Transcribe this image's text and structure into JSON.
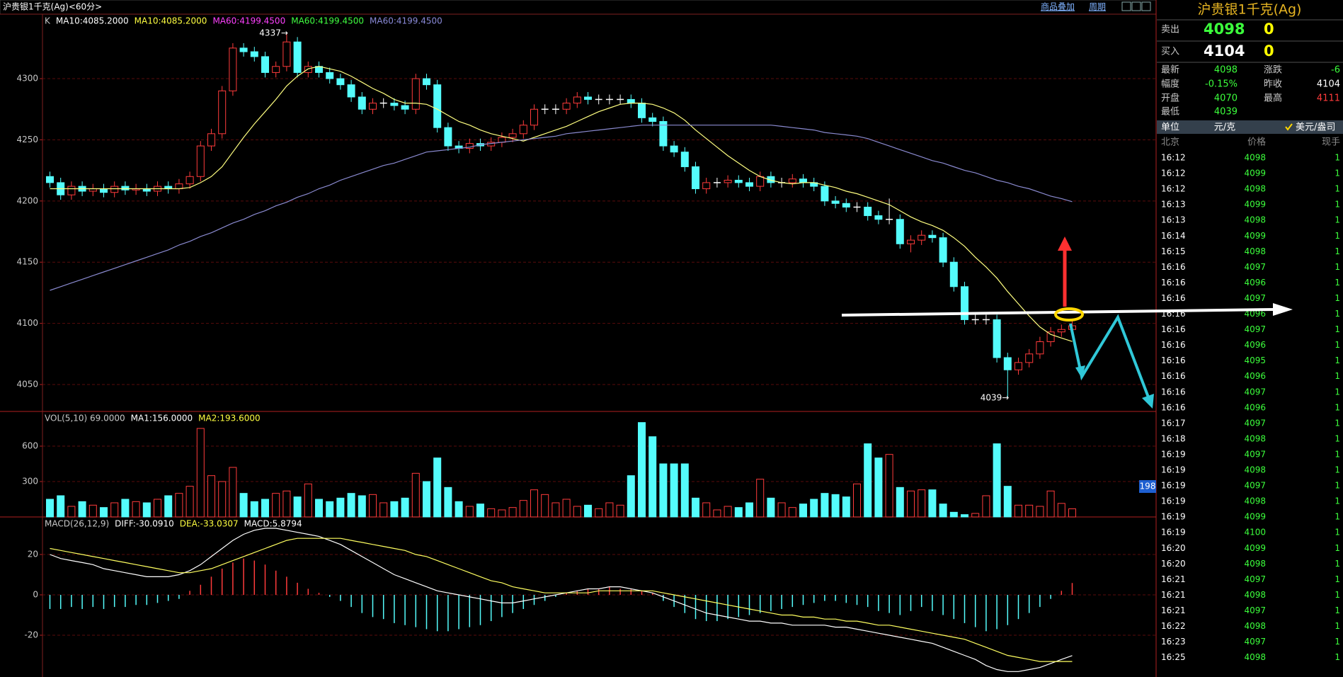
{
  "header": {
    "title": "沪贵银1千克(Ag)<60分>",
    "menu": [
      "商品叠加",
      "周期"
    ]
  },
  "chart_data": [
    {
      "type": "candlestick",
      "legend": [
        {
          "text": "K",
          "color": "#c8c8c8"
        },
        {
          "text": "MA10:4085.2000",
          "color": "#ffffff"
        },
        {
          "text": "MA10:4085.2000",
          "color": "#ffff40"
        },
        {
          "text": "MA60:4199.4500",
          "color": "#ff40ff"
        },
        {
          "text": "MA60:4199.4500",
          "color": "#40ff40"
        },
        {
          "text": "MA60:4199.4500",
          "color": "#8a8ad8"
        }
      ],
      "ylim": [
        4028,
        4352.7
      ],
      "yticks": [
        4050,
        4100,
        4150,
        4200,
        4250,
        4300
      ],
      "grid": true,
      "up_color": "#ff3b3b",
      "down_color": "#54fcfc",
      "flat_color": "#ffffff",
      "open": [
        4220,
        4215,
        4205,
        4212,
        4208,
        4210,
        4207,
        4212,
        4209,
        4210,
        4208,
        4212,
        4210,
        4214,
        4220,
        4245,
        4255,
        4290,
        4325,
        4322,
        4318,
        4305,
        4310,
        4330,
        4305,
        4310,
        4305,
        4300,
        4295,
        4285,
        4275,
        4280,
        4280,
        4278,
        4275,
        4300,
        4295,
        4260,
        4245,
        4243,
        4247,
        4245,
        4248,
        4252,
        4255,
        4262,
        4275,
        4275,
        4275,
        4280,
        4285,
        4283,
        4283,
        4283,
        4283,
        4280,
        4268,
        4265,
        4245,
        4240,
        4228,
        4210,
        4215,
        4215,
        4217,
        4215,
        4212,
        4220,
        4215,
        4215,
        4218,
        4215,
        4212,
        4200,
        4198,
        4195,
        4195,
        4188,
        4185,
        4185,
        4165,
        4168,
        4172,
        4170,
        4150,
        4130,
        4103,
        4103,
        4103,
        4072,
        4062,
        4068,
        4075,
        4085,
        4093,
        4095
      ],
      "high": [
        4224,
        4219,
        4216,
        4216,
        4214,
        4214,
        4216,
        4216,
        4214,
        4214,
        4216,
        4216,
        4218,
        4224,
        4249,
        4259,
        4294,
        4329,
        4329,
        4326,
        4322,
        4314,
        4337,
        4334,
        4314,
        4314,
        4309,
        4304,
        4299,
        4289,
        4284,
        4284,
        4284,
        4282,
        4304,
        4304,
        4299,
        4264,
        4249,
        4251,
        4251,
        4252,
        4256,
        4259,
        4266,
        4279,
        4279,
        4279,
        4284,
        4289,
        4289,
        4287,
        4287,
        4287,
        4287,
        4284,
        4272,
        4269,
        4249,
        4244,
        4232,
        4219,
        4219,
        4221,
        4221,
        4219,
        4224,
        4224,
        4219,
        4222,
        4222,
        4219,
        4216,
        4204,
        4202,
        4199,
        4199,
        4192,
        4202,
        4189,
        4172,
        4176,
        4176,
        4174,
        4154,
        4134,
        4107,
        4107,
        4107,
        4076,
        4072,
        4079,
        4089,
        4097,
        4099,
        4102
      ],
      "low": [
        4211,
        4201,
        4201,
        4204,
        4204,
        4203,
        4203,
        4205,
        4205,
        4204,
        4204,
        4206,
        4206,
        4210,
        4216,
        4241,
        4251,
        4286,
        4318,
        4314,
        4301,
        4301,
        4306,
        4301,
        4301,
        4301,
        4296,
        4291,
        4281,
        4271,
        4271,
        4276,
        4274,
        4271,
        4271,
        4291,
        4256,
        4241,
        4239,
        4239,
        4241,
        4241,
        4244,
        4248,
        4251,
        4258,
        4271,
        4271,
        4271,
        4276,
        4279,
        4279,
        4279,
        4279,
        4276,
        4264,
        4261,
        4241,
        4236,
        4224,
        4206,
        4206,
        4211,
        4211,
        4211,
        4208,
        4208,
        4211,
        4211,
        4211,
        4211,
        4208,
        4196,
        4194,
        4191,
        4191,
        4184,
        4181,
        4181,
        4161,
        4158,
        4164,
        4166,
        4146,
        4126,
        4099,
        4099,
        4099,
        4068,
        4039,
        4058,
        4064,
        4071,
        4081,
        4089,
        4091
      ],
      "close": [
        4215,
        4205,
        4212,
        4208,
        4210,
        4207,
        4212,
        4209,
        4210,
        4208,
        4212,
        4210,
        4214,
        4220,
        4245,
        4255,
        4290,
        4325,
        4322,
        4318,
        4305,
        4310,
        4330,
        4305,
        4310,
        4305,
        4300,
        4295,
        4285,
        4275,
        4280,
        4280,
        4278,
        4275,
        4300,
        4295,
        4260,
        4245,
        4243,
        4247,
        4245,
        4248,
        4252,
        4255,
        4262,
        4275,
        4275,
        4275,
        4280,
        4285,
        4283,
        4283,
        4283,
        4283,
        4280,
        4268,
        4265,
        4245,
        4240,
        4228,
        4210,
        4215,
        4215,
        4217,
        4215,
        4212,
        4220,
        4215,
        4215,
        4218,
        4215,
        4212,
        4200,
        4198,
        4195,
        4195,
        4188,
        4185,
        4185,
        4165,
        4168,
        4172,
        4170,
        4150,
        4130,
        4103,
        4103,
        4103,
        4072,
        4062,
        4068,
        4075,
        4085,
        4093,
        4095,
        4098
      ],
      "series": [
        {
          "color": "#ffff80",
          "values": [
            4210,
            4210,
            4210,
            4210,
            4210,
            4210,
            4210,
            4210,
            4210,
            4210,
            4210,
            4210,
            4210,
            4211,
            4215,
            4220,
            4228,
            4240,
            4252,
            4263,
            4273,
            4283,
            4294,
            4302,
            4308,
            4310,
            4308,
            4306,
            4302,
            4297,
            4292,
            4288,
            4283,
            4280,
            4280,
            4279,
            4275,
            4270,
            4265,
            4262,
            4258,
            4255,
            4253,
            4251,
            4249,
            4252,
            4255,
            4258,
            4261,
            4265,
            4269,
            4273,
            4276,
            4279,
            4280,
            4280,
            4279,
            4276,
            4272,
            4266,
            4258,
            4251,
            4244,
            4237,
            4231,
            4225,
            4220,
            4217,
            4215,
            4214,
            4215,
            4215,
            4213,
            4211,
            4208,
            4206,
            4203,
            4200,
            4197,
            4192,
            4187,
            4183,
            4180,
            4176,
            4170,
            4163,
            4154,
            4146,
            4137,
            4126,
            4116,
            4106,
            4097,
            4091,
            4088,
            4085.2
          ]
        },
        {
          "color": "#8a8ad0",
          "values": [
            4127,
            4130,
            4133,
            4136,
            4139,
            4142,
            4145,
            4148,
            4151,
            4154,
            4157,
            4160,
            4164,
            4167,
            4171,
            4174,
            4178,
            4182,
            4185,
            4189,
            4192,
            4196,
            4199,
            4203,
            4206,
            4210,
            4213,
            4217,
            4220,
            4223,
            4226,
            4229,
            4231,
            4234,
            4237,
            4240,
            4241,
            4242,
            4243,
            4244,
            4246,
            4247,
            4248,
            4249,
            4250,
            4251,
            4252,
            4253,
            4255,
            4256,
            4257,
            4258,
            4259,
            4260,
            4261,
            4262,
            4262,
            4262,
            4262,
            4262,
            4262,
            4262,
            4262,
            4262,
            4262,
            4262,
            4262,
            4262,
            4261,
            4260,
            4259,
            4258,
            4256,
            4255,
            4254,
            4253,
            4251,
            4248,
            4245,
            4242,
            4239,
            4236,
            4233,
            4231,
            4228,
            4225,
            4223,
            4220,
            4217,
            4215,
            4212,
            4210,
            4207,
            4204,
            4202,
            4199.45
          ]
        }
      ],
      "annotations": [
        {
          "text": "4337→",
          "value": 4337
        },
        {
          "text": "4039→",
          "value": 4039
        }
      ]
    },
    {
      "type": "bar",
      "legend": [
        {
          "text": "VOL(5,10) 69.0000",
          "color": "#c8c8c8"
        },
        {
          "text": "MA1:156.0000",
          "color": "#ffffff"
        },
        {
          "text": "MA2:193.6000",
          "color": "#ffff40"
        }
      ],
      "ylim": [
        0,
        894
      ],
      "yticks": [
        300,
        600
      ],
      "grid": true,
      "up_color": "#ff3b3b",
      "down_color": "#54fcfc",
      "cursor_label": 198,
      "values": [
        150,
        180,
        90,
        130,
        100,
        80,
        120,
        150,
        130,
        120,
        150,
        180,
        200,
        260,
        750,
        350,
        300,
        420,
        200,
        130,
        150,
        200,
        220,
        170,
        280,
        150,
        130,
        160,
        200,
        180,
        190,
        120,
        130,
        160,
        370,
        300,
        500,
        250,
        130,
        90,
        110,
        70,
        60,
        80,
        140,
        230,
        190,
        120,
        150,
        90,
        100,
        70,
        120,
        100,
        350,
        800,
        680,
        450,
        450,
        450,
        160,
        120,
        60,
        90,
        80,
        120,
        320,
        160,
        120,
        80,
        110,
        150,
        200,
        190,
        170,
        280,
        620,
        500,
        530,
        250,
        220,
        230,
        230,
        110,
        40,
        20,
        30,
        180,
        620,
        260,
        100,
        100,
        90,
        220,
        115,
        69
      ]
    },
    {
      "type": "macd",
      "legend": [
        {
          "text": "MACD(26,12,9)",
          "color": "#c8c8c8"
        },
        {
          "text": "DIFF:-30.0910",
          "color": "#ffffff"
        },
        {
          "text": "DEA:-33.0307",
          "color": "#ffff40"
        },
        {
          "text": "MACD:5.8794",
          "color": "#ffffff"
        }
      ],
      "ylim": [
        -40.7,
        38.6
      ],
      "yticks": [
        -20,
        0,
        20
      ],
      "grid": true,
      "up_color": "#ff3b3b",
      "down_color": "#54fcfc",
      "values": [
        -7,
        -7,
        -6,
        -7,
        -6,
        -7,
        -6,
        -6,
        -5,
        -5,
        -4,
        -3,
        -2,
        2,
        5,
        9,
        13,
        16,
        18,
        17,
        15,
        12,
        9,
        6,
        3,
        1,
        -1,
        -3,
        -6,
        -9,
        -11,
        -12,
        -14,
        -15,
        -16,
        -17,
        -18,
        -18,
        -17,
        -16,
        -15,
        -13,
        -11,
        -9,
        -7,
        -5,
        -3,
        -1,
        1,
        2,
        3,
        3,
        4,
        3,
        3,
        2,
        1,
        -3,
        -6,
        -9,
        -12,
        -13,
        -13,
        -12,
        -11,
        -10,
        -9,
        -8,
        -7,
        -6,
        -5,
        -4,
        -3,
        -3,
        -4,
        -5,
        -6,
        -8,
        -9,
        -10,
        -8,
        -6,
        -8,
        -10,
        -12,
        -14,
        -16,
        -18,
        -17,
        -15,
        -12,
        -9,
        -6,
        -2,
        2,
        5.8794
      ],
      "series": [
        {
          "color": "#ffffff",
          "values": [
            20,
            18,
            17,
            16,
            15,
            13,
            12,
            11,
            10,
            9,
            9,
            9,
            10,
            12,
            15,
            19,
            23,
            27,
            30,
            32,
            33,
            33,
            32,
            31,
            30,
            29,
            27,
            25,
            22,
            19,
            16,
            13,
            10,
            8,
            6,
            4,
            2,
            1,
            0,
            -1,
            -2,
            -3,
            -4,
            -4,
            -3,
            -2,
            -1,
            0,
            1,
            2,
            3,
            3,
            4,
            4,
            3,
            2,
            1,
            -1,
            -3,
            -5,
            -7,
            -9,
            -10,
            -11,
            -12,
            -13,
            -13,
            -14,
            -14,
            -15,
            -15,
            -15,
            -15,
            -16,
            -16,
            -17,
            -18,
            -19,
            -20,
            -21,
            -22,
            -23,
            -24,
            -26,
            -28,
            -30,
            -32,
            -35,
            -37,
            -38,
            -38,
            -37,
            -36,
            -34,
            -32,
            -30.091
          ]
        },
        {
          "color": "#ffff60",
          "values": [
            23,
            22,
            21,
            20,
            19,
            18,
            17,
            16,
            15,
            14,
            13,
            12,
            11,
            11,
            12,
            13,
            15,
            17,
            19,
            21,
            23,
            25,
            27,
            28,
            28,
            28,
            28,
            28,
            27,
            26,
            25,
            24,
            23,
            22,
            20,
            19,
            17,
            15,
            13,
            11,
            9,
            7,
            6,
            4,
            3,
            2,
            1,
            1,
            1,
            1,
            1,
            2,
            2,
            2,
            2,
            2,
            2,
            1,
            0,
            -1,
            -2,
            -3,
            -4,
            -5,
            -6,
            -7,
            -8,
            -9,
            -10,
            -10,
            -11,
            -11,
            -12,
            -12,
            -13,
            -13,
            -14,
            -15,
            -15,
            -16,
            -17,
            -18,
            -19,
            -20,
            -21,
            -22,
            -24,
            -26,
            -28,
            -30,
            -31,
            -32,
            -33,
            -33,
            -33,
            -33.0307
          ]
        }
      ]
    }
  ],
  "quote_panel": {
    "title": "沪贵银1千克(Ag)",
    "sell": {
      "label": "卖出",
      "price": 4098,
      "qty": 0
    },
    "buy": {
      "label": "买入",
      "price": 4104,
      "qty": 0
    },
    "stats": [
      [
        "最新",
        4098,
        "涨跌",
        -6
      ],
      [
        "幅度",
        "-0.15%",
        "昨收",
        4104
      ],
      [
        "开盘",
        4070,
        "最高",
        4111
      ],
      [
        "最低",
        4039
      ]
    ],
    "unit": [
      "单位",
      "元/克",
      "美元/盎司"
    ]
  },
  "ticks_table": {
    "header": [
      "北京",
      "价格",
      "现手"
    ],
    "rows": [
      [
        "16:12",
        4098,
        1
      ],
      [
        "16:12",
        4099,
        1
      ],
      [
        "16:12",
        4098,
        1
      ],
      [
        "16:13",
        4099,
        1
      ],
      [
        "16:13",
        4098,
        1
      ],
      [
        "16:14",
        4099,
        1
      ],
      [
        "16:15",
        4098,
        1
      ],
      [
        "16:16",
        4097,
        1
      ],
      [
        "16:16",
        4096,
        1
      ],
      [
        "16:16",
        4097,
        1
      ],
      [
        "16:16",
        4096,
        1
      ],
      [
        "16:16",
        4097,
        1
      ],
      [
        "16:16",
        4096,
        1
      ],
      [
        "16:16",
        4095,
        1
      ],
      [
        "16:16",
        4096,
        1
      ],
      [
        "16:16",
        4097,
        1
      ],
      [
        "16:16",
        4096,
        1
      ],
      [
        "16:17",
        4097,
        1
      ],
      [
        "16:18",
        4098,
        1
      ],
      [
        "16:19",
        4097,
        1
      ],
      [
        "16:19",
        4098,
        1
      ],
      [
        "16:19",
        4097,
        1
      ],
      [
        "16:19",
        4098,
        1
      ],
      [
        "16:19",
        4099,
        1
      ],
      [
        "16:19",
        4100,
        1
      ],
      [
        "16:20",
        4099,
        1
      ],
      [
        "16:20",
        4098,
        1
      ],
      [
        "16:21",
        4097,
        1
      ],
      [
        "16:21",
        4098,
        1
      ],
      [
        "16:21",
        4097,
        1
      ],
      [
        "16:22",
        4098,
        1
      ],
      [
        "16:23",
        4097,
        1
      ],
      [
        "16:25",
        4098,
        1
      ]
    ]
  }
}
